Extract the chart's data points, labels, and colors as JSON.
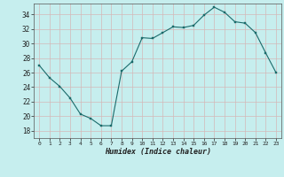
{
  "title": "",
  "xlabel": "Humidex (Indice chaleur)",
  "ylabel": "",
  "background_color": "#c6eeee",
  "grid_color_major": "#d4b8b8",
  "grid_color_minor": "#dcc8c8",
  "line_color": "#1a6b6b",
  "marker_color": "#1a6b6b",
  "xlim": [
    -0.5,
    23.5
  ],
  "ylim": [
    17,
    35.5
  ],
  "yticks": [
    18,
    20,
    22,
    24,
    26,
    28,
    30,
    32,
    34
  ],
  "xticks": [
    0,
    1,
    2,
    3,
    4,
    5,
    6,
    7,
    8,
    9,
    10,
    11,
    12,
    13,
    14,
    15,
    16,
    17,
    18,
    19,
    20,
    21,
    22,
    23
  ],
  "x": [
    0,
    1,
    2,
    3,
    4,
    5,
    6,
    7,
    8,
    9,
    10,
    11,
    12,
    13,
    14,
    15,
    16,
    17,
    18,
    19,
    20,
    21,
    22,
    23
  ],
  "y": [
    27.0,
    25.3,
    24.1,
    22.5,
    20.3,
    19.7,
    18.7,
    18.7,
    26.2,
    27.5,
    30.8,
    30.7,
    31.5,
    32.3,
    32.2,
    32.5,
    33.9,
    35.0,
    34.3,
    33.0,
    32.8,
    31.5,
    28.7,
    26.0
  ]
}
